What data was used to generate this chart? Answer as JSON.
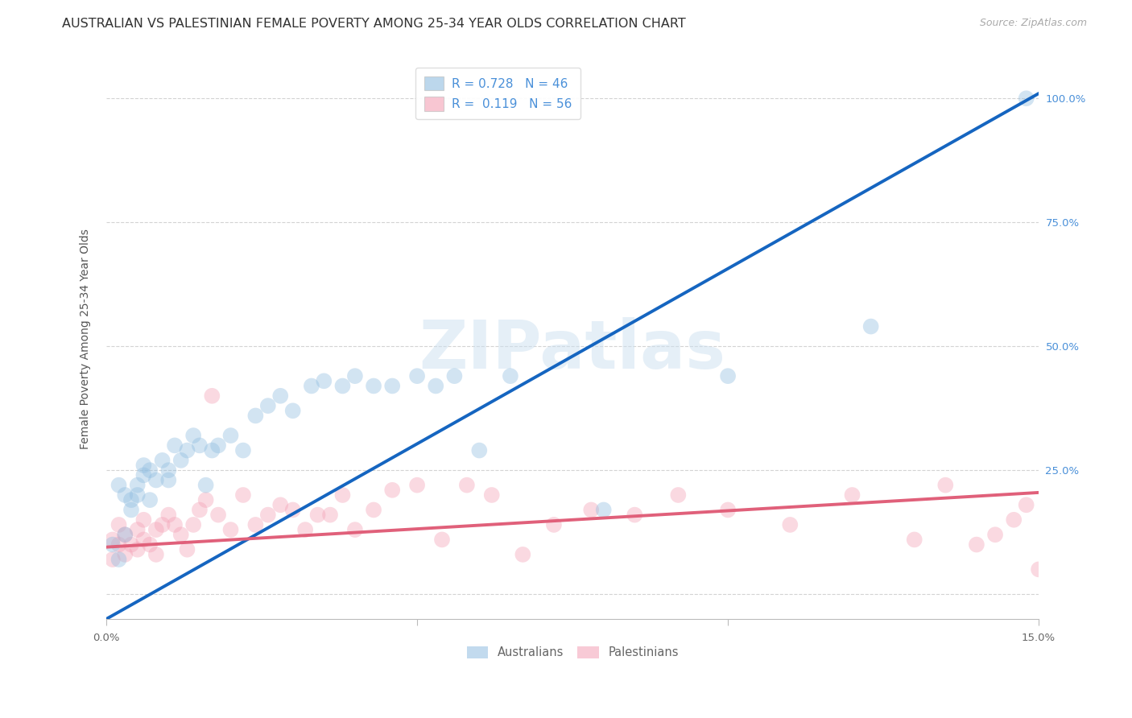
{
  "title": "AUSTRALIAN VS PALESTINIAN FEMALE POVERTY AMONG 25-34 YEAR OLDS CORRELATION CHART",
  "source": "Source: ZipAtlas.com",
  "ylabel": "Female Poverty Among 25-34 Year Olds",
  "background_color": "#ffffff",
  "watermark": "ZIPatlas",
  "legend_R_aus": "0.728",
  "legend_N_aus": "46",
  "legend_R_pal": "0.119",
  "legend_N_pal": "56",
  "aus_color": "#90bde0",
  "aus_line_color": "#1565c0",
  "pal_color": "#f4a0b5",
  "pal_line_color": "#e0607a",
  "xmin": 0.0,
  "xmax": 0.15,
  "ymin": -0.05,
  "ymax": 1.08,
  "yticks": [
    0.0,
    0.25,
    0.5,
    0.75,
    1.0
  ],
  "ytick_labels_right": [
    "",
    "25.0%",
    "50.0%",
    "75.0%",
    "100.0%"
  ],
  "aus_scatter_x": [
    0.001,
    0.002,
    0.002,
    0.003,
    0.003,
    0.004,
    0.004,
    0.005,
    0.005,
    0.006,
    0.006,
    0.007,
    0.007,
    0.008,
    0.009,
    0.01,
    0.01,
    0.011,
    0.012,
    0.013,
    0.014,
    0.015,
    0.016,
    0.017,
    0.018,
    0.02,
    0.022,
    0.024,
    0.026,
    0.028,
    0.03,
    0.033,
    0.035,
    0.038,
    0.04,
    0.043,
    0.046,
    0.05,
    0.053,
    0.056,
    0.06,
    0.065,
    0.08,
    0.1,
    0.123,
    0.148
  ],
  "aus_scatter_y": [
    0.1,
    0.07,
    0.22,
    0.12,
    0.2,
    0.17,
    0.19,
    0.22,
    0.2,
    0.24,
    0.26,
    0.19,
    0.25,
    0.23,
    0.27,
    0.25,
    0.23,
    0.3,
    0.27,
    0.29,
    0.32,
    0.3,
    0.22,
    0.29,
    0.3,
    0.32,
    0.29,
    0.36,
    0.38,
    0.4,
    0.37,
    0.42,
    0.43,
    0.42,
    0.44,
    0.42,
    0.42,
    0.44,
    0.42,
    0.44,
    0.29,
    0.44,
    0.17,
    0.44,
    0.54,
    1.0
  ],
  "pal_scatter_x": [
    0.001,
    0.001,
    0.002,
    0.002,
    0.003,
    0.003,
    0.004,
    0.005,
    0.005,
    0.006,
    0.006,
    0.007,
    0.008,
    0.008,
    0.009,
    0.01,
    0.011,
    0.012,
    0.013,
    0.014,
    0.015,
    0.016,
    0.017,
    0.018,
    0.02,
    0.022,
    0.024,
    0.026,
    0.028,
    0.03,
    0.032,
    0.034,
    0.036,
    0.038,
    0.04,
    0.043,
    0.046,
    0.05,
    0.054,
    0.058,
    0.062,
    0.067,
    0.072,
    0.078,
    0.085,
    0.092,
    0.1,
    0.11,
    0.12,
    0.13,
    0.135,
    0.14,
    0.143,
    0.146,
    0.148,
    0.15
  ],
  "pal_scatter_y": [
    0.11,
    0.07,
    0.1,
    0.14,
    0.08,
    0.12,
    0.1,
    0.09,
    0.13,
    0.11,
    0.15,
    0.1,
    0.13,
    0.08,
    0.14,
    0.16,
    0.14,
    0.12,
    0.09,
    0.14,
    0.17,
    0.19,
    0.4,
    0.16,
    0.13,
    0.2,
    0.14,
    0.16,
    0.18,
    0.17,
    0.13,
    0.16,
    0.16,
    0.2,
    0.13,
    0.17,
    0.21,
    0.22,
    0.11,
    0.22,
    0.2,
    0.08,
    0.14,
    0.17,
    0.16,
    0.2,
    0.17,
    0.14,
    0.2,
    0.11,
    0.22,
    0.1,
    0.12,
    0.15,
    0.18,
    0.05
  ],
  "aus_line_x": [
    0.0,
    0.15
  ],
  "aus_line_y": [
    -0.05,
    1.01
  ],
  "pal_line_x": [
    0.0,
    0.15
  ],
  "pal_line_y": [
    0.095,
    0.205
  ],
  "marker_size": 200,
  "marker_alpha": 0.4,
  "title_fontsize": 11.5,
  "source_fontsize": 9,
  "axis_label_fontsize": 10,
  "legend_fontsize": 11,
  "tick_fontsize": 9.5,
  "right_ytick_color": "#4a90d9",
  "grid_color": "#c8c8c8",
  "grid_alpha": 0.8
}
